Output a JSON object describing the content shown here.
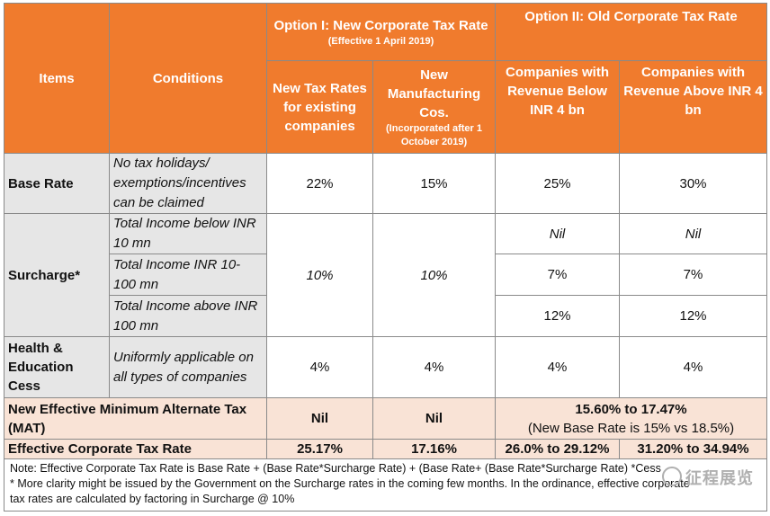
{
  "header": {
    "items": "Items",
    "conditions": "Conditions",
    "option1_title": "Option I: New Corporate Tax Rate",
    "option1_effective": "(Effective 1 April 2019)",
    "option2_title": "Option II: Old Corporate Tax Rate",
    "col1": "New Tax Rates for existing companies",
    "col2": "New Manufacturing Cos.",
    "col2_note": "(Incorporated after 1 October 2019)",
    "col3": "Companies with Revenue Below INR 4 bn",
    "col4": "Companies with Revenue Above INR 4 bn"
  },
  "rows": {
    "base": {
      "item": "Base Rate",
      "condition": "No tax holidays/ exemptions/incentives can be claimed",
      "v1": "22%",
      "v2": "15%",
      "v3": "25%",
      "v4": "30%"
    },
    "surcharge": {
      "item": "Surcharge*",
      "cond1": "Total Income below INR 10 mn",
      "cond2": "Total Income INR 10-100 mn",
      "cond3": "Total Income above INR 100 mn",
      "v1": "10%",
      "v2": "10%",
      "r1v3": "Nil",
      "r1v4": "Nil",
      "r2v3": "7%",
      "r2v4": "7%",
      "r3v3": "12%",
      "r3v4": "12%"
    },
    "cess": {
      "item": "Health & Education Cess",
      "condition": "Uniformly applicable on all types of companies",
      "v1": "4%",
      "v2": "4%",
      "v3": "4%",
      "v4": "4%"
    },
    "mat": {
      "item": "New Effective Minimum Alternate Tax (MAT)",
      "v1": "Nil",
      "v2": "Nil",
      "v34_main": "15.60% to 17.47%",
      "v34_sub": "(New Base Rate is 15% vs 18.5%)"
    },
    "effective": {
      "item": "Effective Corporate Tax Rate",
      "v1": "25.17%",
      "v2": "17.16%",
      "v3": "26.0% to 29.12%",
      "v4": "31.20% to 34.94%"
    }
  },
  "notes": {
    "line1": "Note: Effective Corporate Tax Rate is Base Rate + (Base Rate*Surcharge Rate) + (Base Rate+ (Base Rate*Surcharge Rate) *Cess",
    "line2": "* More clarity might be issued by the Government on the Surcharge rates in the coming few months. In the ordinance, effective corporate",
    "line3": "tax rates are calculated by factoring in Surcharge @ 10%"
  },
  "watermark": "征程展览"
}
